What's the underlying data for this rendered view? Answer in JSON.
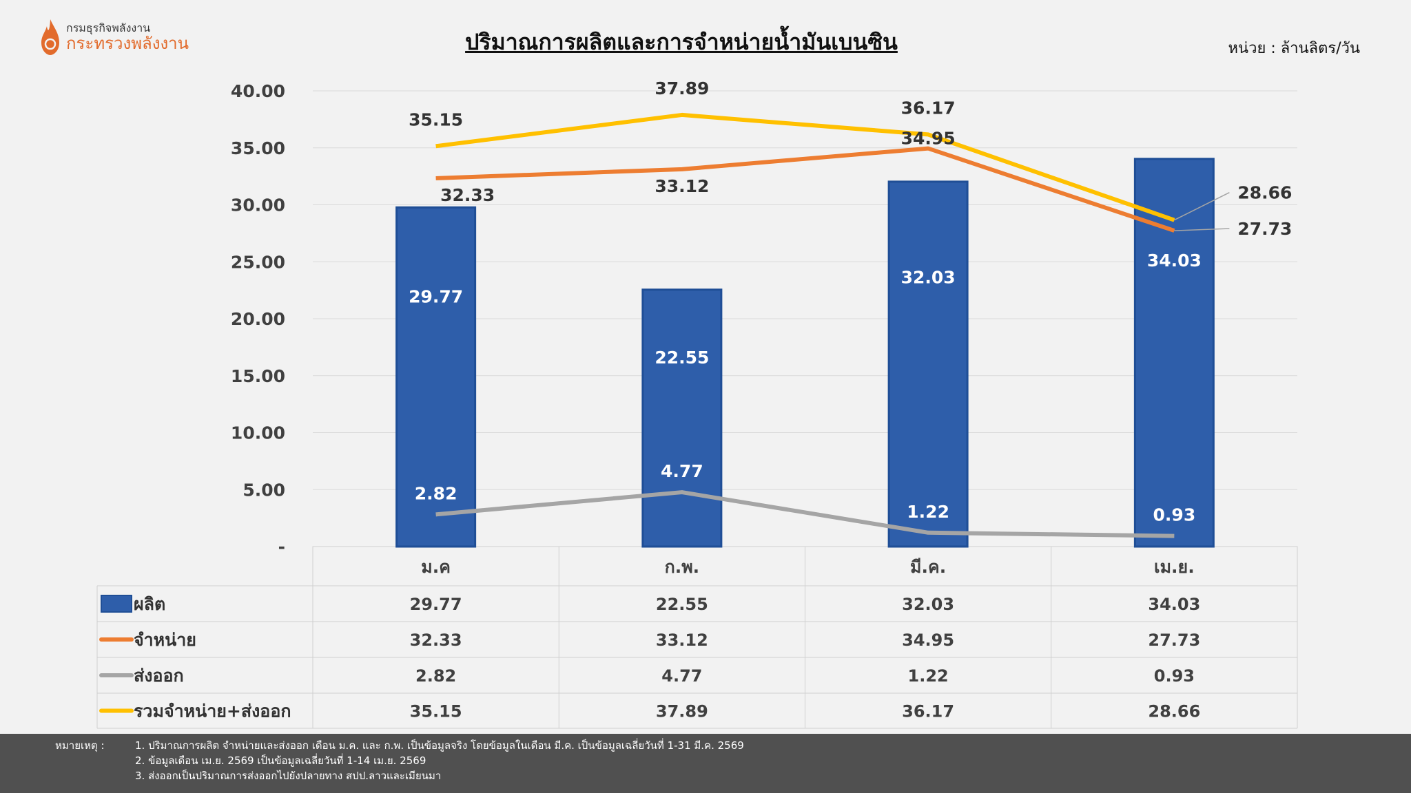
{
  "header": {
    "org_line1": "กรมธุรกิจพลังงาน",
    "org_line2": "กระทรวงพลังงาน",
    "title": "ปริมาณการผลิตและการจำหน่ายน้ำมันเบนซิน",
    "unit": "หน่วย : ล้านลิตร/วัน"
  },
  "chart_data": {
    "type": "bar",
    "title": "ปริมาณการผลิตและการจำหน่ายน้ำมันเบนซิน",
    "categories": [
      "ม.ค",
      "ก.พ.",
      "มี.ค.",
      "เม.ย."
    ],
    "ylim": [
      0,
      40
    ],
    "yticks": [
      "-",
      "5.00",
      "10.00",
      "15.00",
      "20.00",
      "25.00",
      "30.00",
      "35.00",
      "40.00"
    ],
    "grid": true,
    "legend": "data-table-below",
    "series": [
      {
        "name": "ผลิต",
        "kind": "bar",
        "color": "#2E5EAA",
        "values": [
          29.77,
          22.55,
          32.03,
          34.03
        ],
        "labels": [
          "29.77",
          "22.55",
          "32.03",
          "34.03"
        ]
      },
      {
        "name": "จำหน่าย",
        "kind": "line",
        "color": "#ED7D31",
        "values": [
          32.33,
          33.12,
          34.95,
          27.73
        ],
        "labels": [
          "32.33",
          "33.12",
          "34.95",
          "27.73"
        ],
        "label_pos": [
          "below",
          "below",
          "above",
          "right"
        ]
      },
      {
        "name": "ส่งออก",
        "kind": "line",
        "color": "#A5A5A5",
        "values": [
          2.82,
          4.77,
          1.22,
          0.93
        ],
        "labels": [
          "2.82",
          "4.77",
          "1.22",
          "0.93"
        ],
        "label_pos": [
          "above",
          "above",
          "above",
          "above"
        ]
      },
      {
        "name": "รวมจำหน่าย+ส่งออก",
        "kind": "line",
        "color": "#FFC000",
        "values": [
          35.15,
          37.89,
          36.17,
          28.66
        ],
        "labels": [
          "35.15",
          "37.89",
          "36.17",
          "28.66"
        ],
        "label_pos": [
          "above",
          "above",
          "above",
          "right"
        ]
      }
    ]
  },
  "footer": {
    "prefix": "หมายเหตุ :",
    "notes": [
      "1. ปริมาณการผลิต จำหน่ายและส่งออก เดือน ม.ค. และ ก.พ. เป็นข้อมูลจริง โดยข้อมูลในเดือน มี.ค. เป็นข้อมูลเฉลี่ยวันที่ 1-31 มี.ค. 2569",
      "2. ข้อมูลเดือน เม.ย. 2569 เป็นข้อมูลเฉลี่ยวันที่ 1-14 เม.ย. 2569",
      "3. ส่งออกเป็นปริมาณการส่งออกไปยังปลายทาง สปป.ลาวและเมียนมา"
    ]
  }
}
